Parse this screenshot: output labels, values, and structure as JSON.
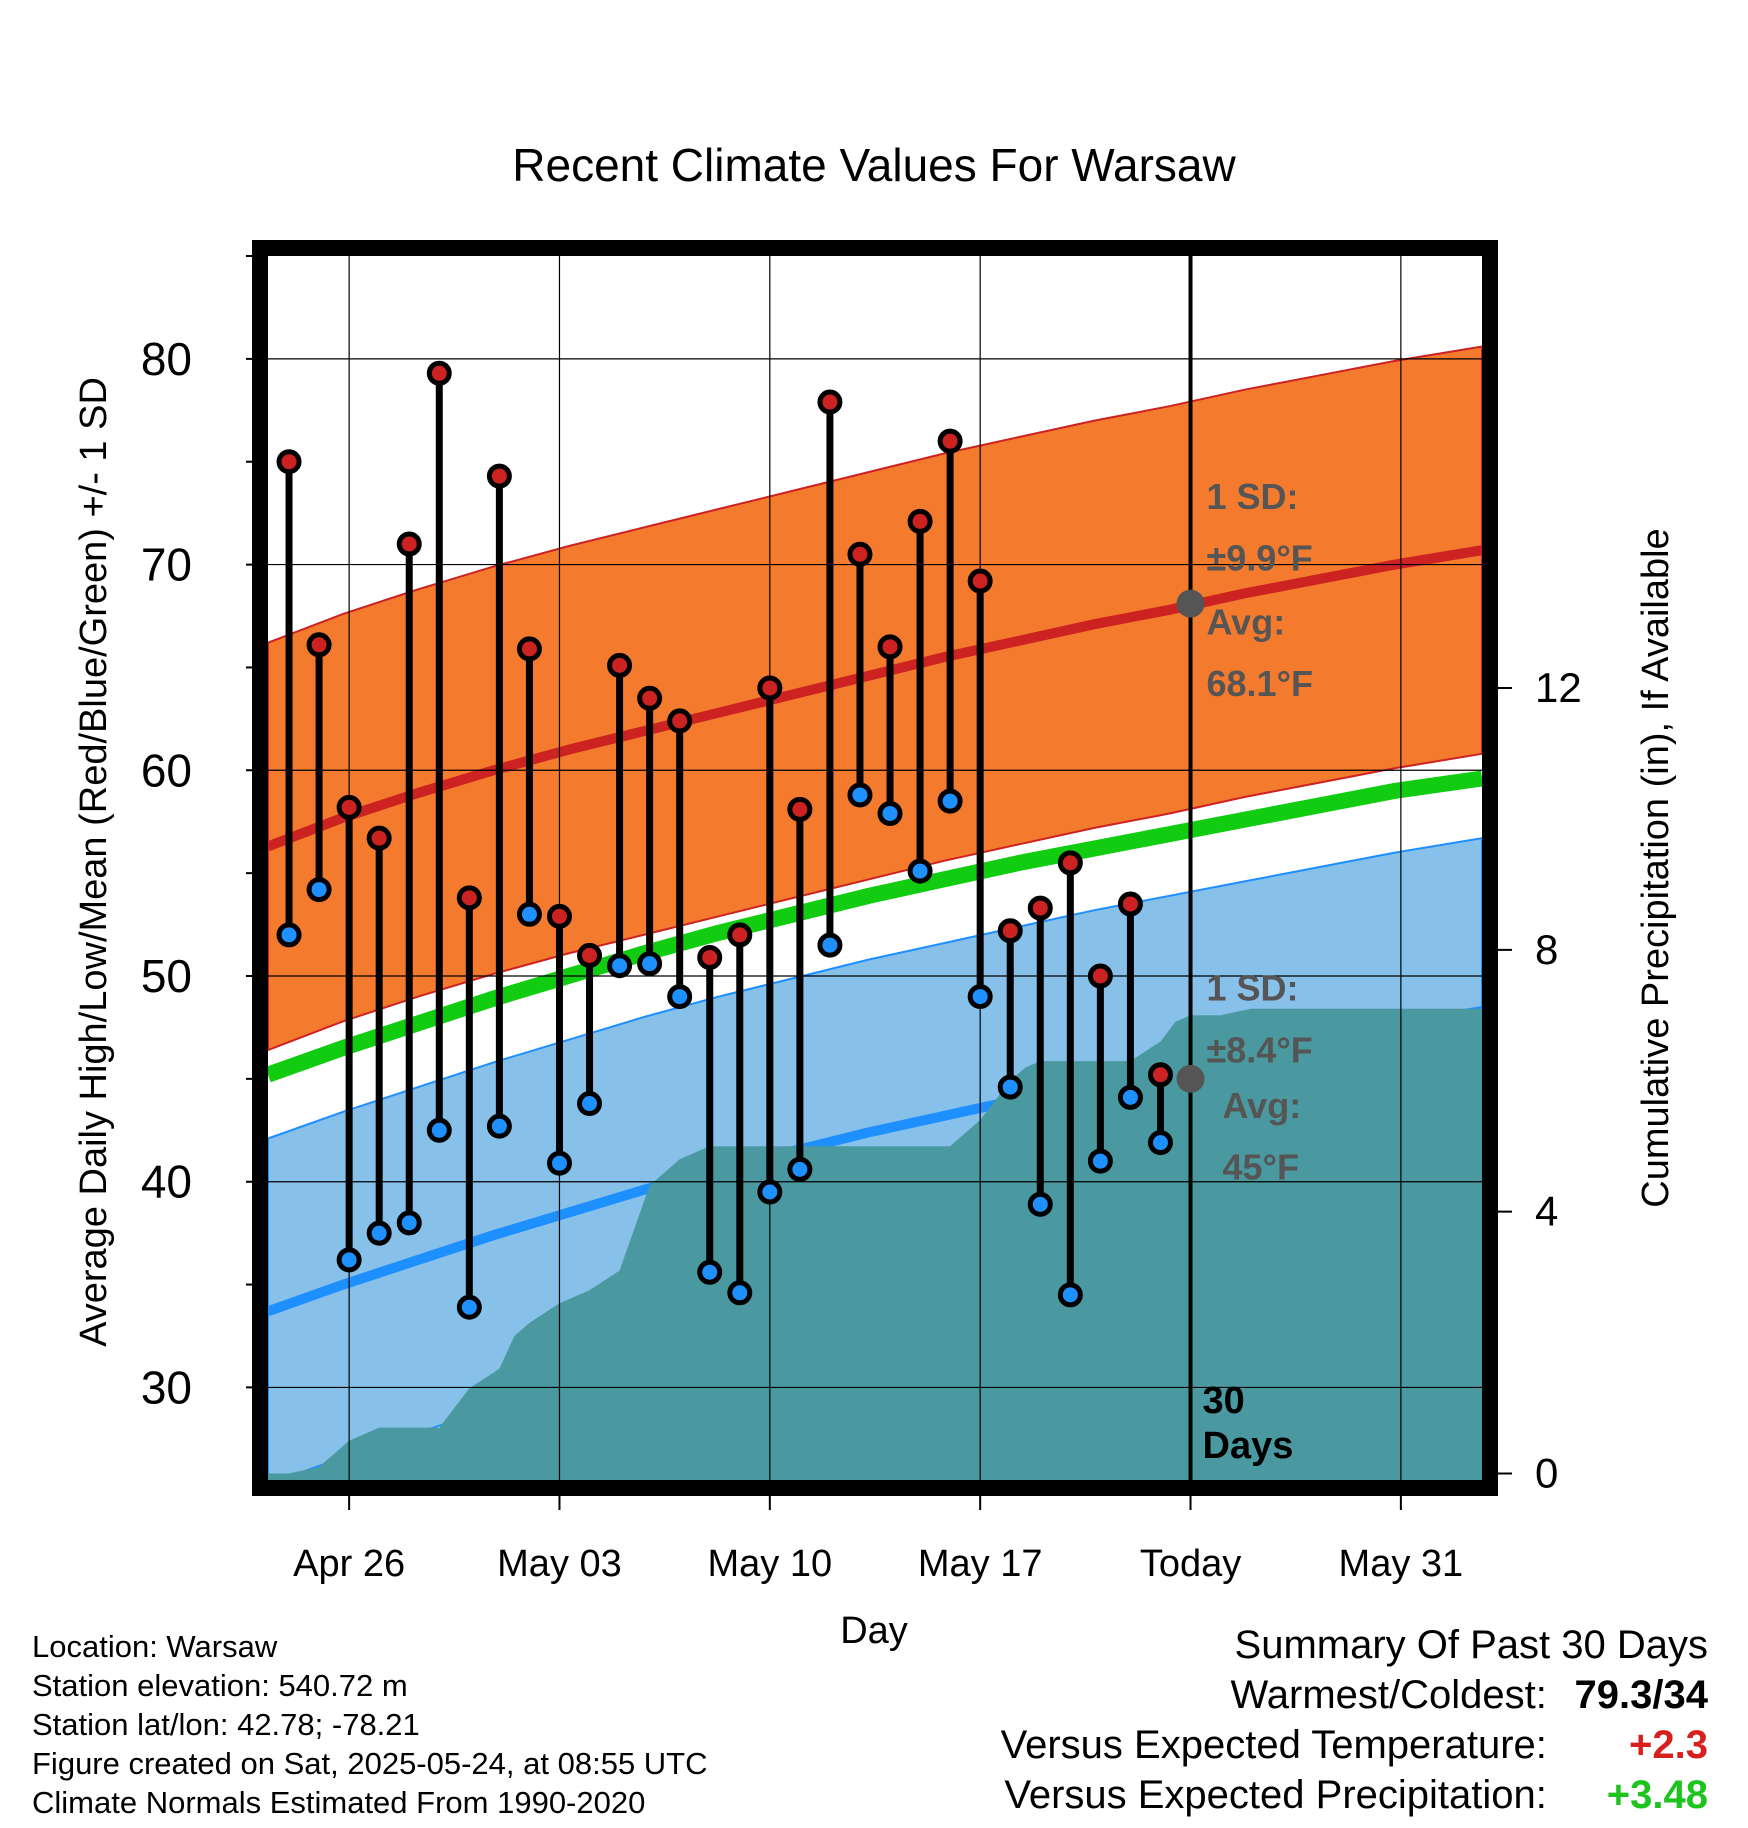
{
  "chart_data": {
    "type": "line",
    "title": "Recent Climate Values For Warsaw",
    "xlabel": "Day",
    "ylabel": "Average Daily High/Low/Mean (Red/Blue/Green) +/- 1 SD",
    "y2label": "Cumulative Precipitation (in), If Available",
    "x_ticks": [
      "Apr 26",
      "May 03",
      "May 10",
      "May 17",
      "Today",
      "May 31"
    ],
    "x_ticks_day": [
      3,
      10,
      17,
      24,
      31,
      38
    ],
    "x_range_day": [
      0.3,
      40.7
    ],
    "today_day": 31,
    "ylim": [
      25.5,
      85
    ],
    "y_ticks": [
      30,
      40,
      50,
      60,
      70,
      80
    ],
    "y2lim": [
      -0.1,
      18.6
    ],
    "y2_ticks": [
      0,
      4,
      8,
      12
    ],
    "grid": true,
    "days_label": "30\nDays",
    "high_temps": [
      75.0,
      66.1,
      58.2,
      56.7,
      71.0,
      79.3,
      53.8,
      74.3,
      65.9,
      52.9,
      51.0,
      65.1,
      63.5,
      62.4,
      50.9,
      52.0,
      64.0,
      58.1,
      77.9,
      70.5,
      66.0,
      72.1,
      76.0,
      69.2,
      52.2,
      53.3,
      55.5,
      50.0,
      53.5,
      45.2
    ],
    "low_temps": [
      52.0,
      54.2,
      36.2,
      37.5,
      38.0,
      42.5,
      33.9,
      42.7,
      53.0,
      40.9,
      43.8,
      50.5,
      50.6,
      49.0,
      35.6,
      34.6,
      39.5,
      40.6,
      51.5,
      58.8,
      57.9,
      55.1,
      58.5,
      49.0,
      44.6,
      38.9,
      34.5,
      41.0,
      44.1,
      41.9
    ],
    "normal_high": [
      56.3,
      57.7,
      58.9,
      60.0,
      61.0,
      61.9,
      62.8,
      63.7,
      64.6,
      65.5,
      66.3,
      67.1,
      67.8,
      68.6,
      69.3,
      70.0,
      70.7
    ],
    "normal_low": [
      33.7,
      35.0,
      36.2,
      37.4,
      38.5,
      39.6,
      40.6,
      41.5,
      42.4,
      43.2,
      44.0,
      44.8,
      45.5,
      46.2,
      46.9,
      47.6,
      48.3
    ],
    "normal_mean": [
      45.2,
      46.5,
      47.7,
      48.9,
      50.0,
      51.1,
      52.1,
      53.0,
      53.9,
      54.7,
      55.5,
      56.2,
      56.9,
      57.6,
      58.3,
      59.0,
      59.6
    ],
    "normal_day": [
      0.3,
      2.8,
      5.3,
      7.8,
      10.3,
      12.8,
      15.3,
      17.8,
      20.3,
      22.8,
      25.3,
      27.8,
      30.3,
      32.8,
      35.3,
      37.8,
      40.7
    ],
    "high_sd": 9.9,
    "low_sd": 8.4,
    "cumulative_precip": [
      0,
      0,
      0.1,
      0.5,
      0.7,
      0.7,
      0.7,
      1.3,
      1.6,
      2.1,
      2.3,
      2.6,
      2.8,
      3.1,
      4.4,
      4.8,
      5.0,
      5.0,
      5.0,
      5.0,
      5.0,
      5.0,
      5.0,
      5.0,
      5.0,
      5.4,
      6.0,
      6.2,
      6.3,
      6.3,
      6.3,
      6.3,
      6.6,
      6.9,
      7.0,
      7.0,
      7.1,
      7.1,
      7.1,
      7.1,
      7.1,
      7.1
    ],
    "precip_day": [
      0.3,
      1.0,
      2.0,
      3.0,
      4.0,
      5.0,
      6.0,
      7.0,
      8.0,
      8.5,
      9.0,
      10.0,
      11.0,
      12.0,
      13.0,
      14.0,
      15.0,
      16.0,
      17.0,
      18.0,
      19.0,
      20.0,
      21.0,
      22.0,
      23.0,
      24.0,
      25.0,
      25.5,
      26.0,
      27.0,
      28.0,
      29.0,
      30.0,
      30.5,
      31.0,
      32.0,
      33.0,
      34.0,
      36.0,
      38.0,
      40.0,
      40.7
    ],
    "annotations": {
      "high_sd_label": "1 SD:",
      "high_sd_value": "±9.9°F",
      "high_avg_label": "Avg:",
      "high_avg_value": "68.1°F",
      "low_sd_label": "1 SD:",
      "low_sd_value": "±8.4°F",
      "low_avg_label": "Avg:",
      "low_avg_value": "45°F"
    },
    "colors": {
      "high_band": "#f47a2e",
      "normal_high_line": "#cc2222",
      "normal_mean_line": "#11cc11",
      "low_band": "#87c0e8",
      "normal_low_line": "#1e8fff",
      "precip_fill": "#4a99a0",
      "high_dot": "#cc2222",
      "low_dot": "#1e90ff",
      "annotation_text": "#555555"
    }
  },
  "info": {
    "location": "Location: Warsaw",
    "elevation": "Station elevation: 540.72 m",
    "latlon": "Station lat/lon: 42.78; -78.21",
    "created": "Figure created on Sat, 2025-05-24, at 08:55 UTC",
    "normals": "Climate Normals Estimated From 1990-2020"
  },
  "summary": {
    "title": "Summary Of Past 30 Days",
    "warmest_label": "Warmest/Coldest:",
    "warmest_value": "79.3/34",
    "temp_label": "Versus Expected Temperature:",
    "temp_value": "+2.3",
    "precip_label": "Versus Expected Precipitation:",
    "precip_value": "+3.48"
  }
}
